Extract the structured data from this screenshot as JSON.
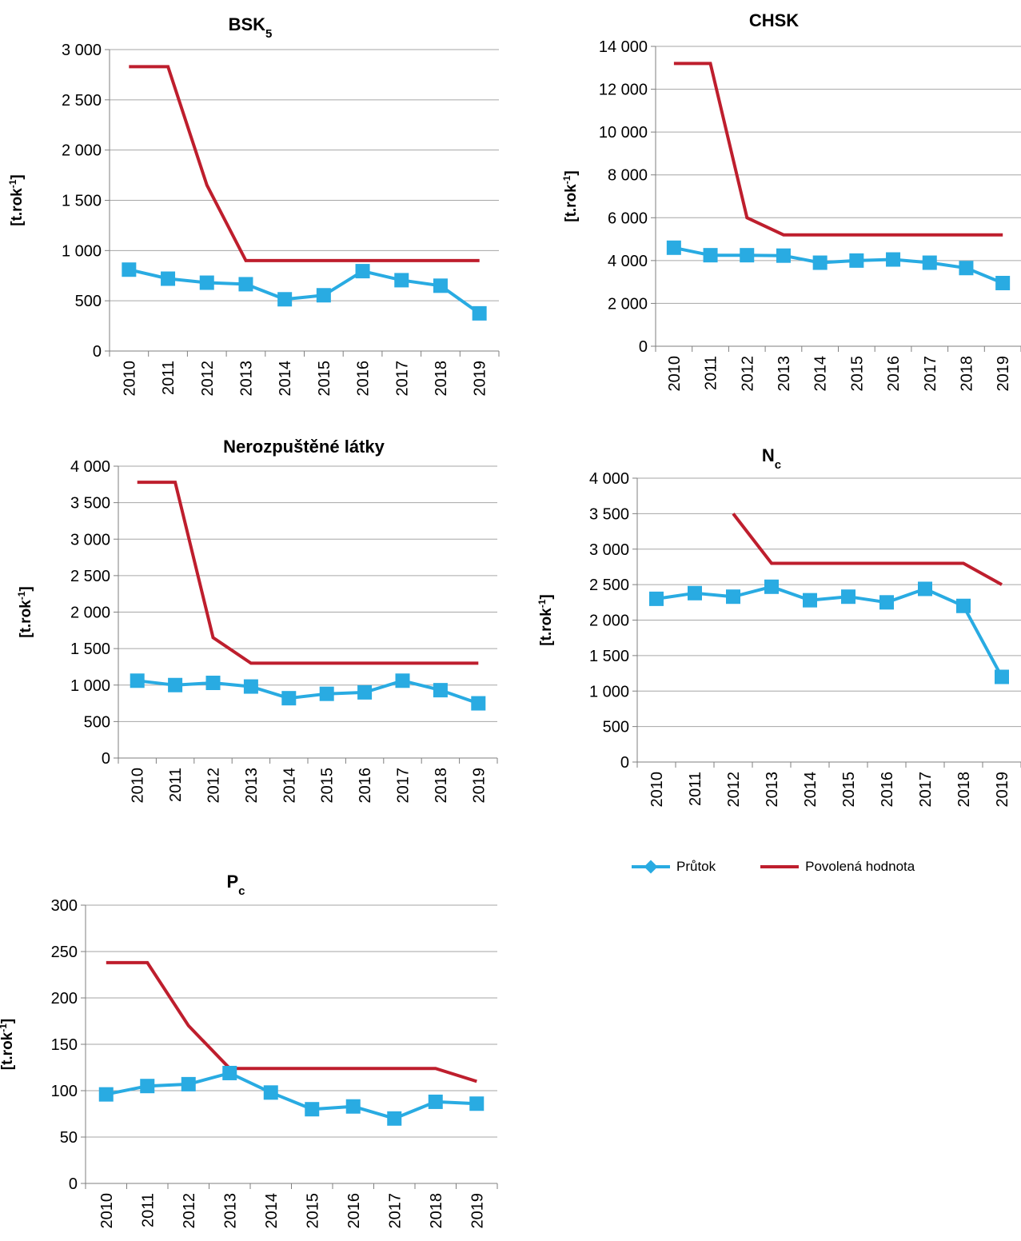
{
  "colors": {
    "flow": "#29abe2",
    "limit": "#be1e2d",
    "grid": "#a6a6a6",
    "axis": "#7f7f7f"
  },
  "unit_label": "[t.rok-1]",
  "legend": {
    "flow_label": "Průtok",
    "limit_label": "Povolená hodnota"
  },
  "chart_data": [
    {
      "type": "line",
      "title": "BSK5",
      "ylabel": "[t.rok-1]",
      "categories": [
        "2010",
        "2011",
        "2012",
        "2013",
        "2014",
        "2015",
        "2016",
        "2017",
        "2018",
        "2019"
      ],
      "ylim": [
        0,
        3000
      ],
      "yticks": [
        0,
        500,
        1000,
        1500,
        2000,
        2500,
        3000
      ],
      "ytick_labels": [
        "0",
        "500",
        "1 000",
        "1 500",
        "2 000",
        "2 500",
        "3 000"
      ],
      "grid": true,
      "series": [
        {
          "name": "Průtok",
          "values": [
            810,
            720,
            680,
            665,
            515,
            555,
            795,
            705,
            650,
            375
          ]
        },
        {
          "name": "Povolená hodnota",
          "values": [
            2830,
            2830,
            1650,
            900,
            900,
            900,
            900,
            900,
            900,
            900
          ]
        }
      ]
    },
    {
      "type": "line",
      "title": "CHSK",
      "ylabel": "[t.rok-1]",
      "categories": [
        "2010",
        "2011",
        "2012",
        "2013",
        "2014",
        "2015",
        "2016",
        "2017",
        "2018",
        "2019"
      ],
      "ylim": [
        0,
        14000
      ],
      "yticks": [
        0,
        2000,
        4000,
        6000,
        8000,
        10000,
        12000,
        14000
      ],
      "ytick_labels": [
        "0",
        "2 000",
        "4 000",
        "6 000",
        "8 000",
        "10 000",
        "12 000",
        "14 000"
      ],
      "grid": true,
      "series": [
        {
          "name": "Průtok",
          "values": [
            4600,
            4250,
            4250,
            4230,
            3900,
            4000,
            4050,
            3900,
            3650,
            2950
          ]
        },
        {
          "name": "Povolená hodnota",
          "values": [
            13200,
            13200,
            6000,
            5200,
            5200,
            5200,
            5200,
            5200,
            5200,
            5200
          ]
        }
      ]
    },
    {
      "type": "line",
      "title": "Nerozpuštěné látky",
      "ylabel": "[t.rok-1]",
      "categories": [
        "2010",
        "2011",
        "2012",
        "2013",
        "2014",
        "2015",
        "2016",
        "2017",
        "2018",
        "2019"
      ],
      "ylim": [
        0,
        4000
      ],
      "yticks": [
        0,
        500,
        1000,
        1500,
        2000,
        2500,
        3000,
        3500,
        4000
      ],
      "ytick_labels": [
        "0",
        "500",
        "1 000",
        "1 500",
        "2 000",
        "2 500",
        "3 000",
        "3 500",
        "4 000"
      ],
      "grid": true,
      "series": [
        {
          "name": "Průtok",
          "values": [
            1060,
            1000,
            1030,
            980,
            820,
            880,
            900,
            1060,
            930,
            750
          ]
        },
        {
          "name": "Povolená hodnota",
          "values": [
            3780,
            3780,
            1650,
            1300,
            1300,
            1300,
            1300,
            1300,
            1300,
            1300
          ]
        }
      ]
    },
    {
      "type": "line",
      "title": "Nc",
      "ylabel": "[t.rok-1]",
      "categories": [
        "2010",
        "2011",
        "2012",
        "2013",
        "2014",
        "2015",
        "2016",
        "2017",
        "2018",
        "2019"
      ],
      "ylim": [
        0,
        4000
      ],
      "yticks": [
        0,
        500,
        1000,
        1500,
        2000,
        2500,
        3000,
        3500,
        4000
      ],
      "ytick_labels": [
        "0",
        "500",
        "1 000",
        "1 500",
        "2 000",
        "2 500",
        "3 000",
        "3 500",
        "4 000"
      ],
      "grid": true,
      "series": [
        {
          "name": "Průtok",
          "values": [
            2300,
            2380,
            2330,
            2470,
            2280,
            2330,
            2250,
            2440,
            2200,
            1200
          ]
        },
        {
          "name": "Povolená hodnota",
          "values": [
            null,
            null,
            3500,
            2800,
            2800,
            2800,
            2800,
            2800,
            2800,
            2500
          ]
        }
      ]
    },
    {
      "type": "line",
      "title": "Pc",
      "ylabel": "[t.rok-1]",
      "categories": [
        "2010",
        "2011",
        "2012",
        "2013",
        "2014",
        "2015",
        "2016",
        "2017",
        "2018",
        "2019"
      ],
      "ylim": [
        0,
        300
      ],
      "yticks": [
        0,
        50,
        100,
        150,
        200,
        250,
        300
      ],
      "ytick_labels": [
        "0",
        "50",
        "100",
        "150",
        "200",
        "250",
        "300"
      ],
      "grid": true,
      "series": [
        {
          "name": "Průtok",
          "values": [
            96,
            105,
            107,
            119,
            98,
            80,
            83,
            70,
            88,
            86
          ]
        },
        {
          "name": "Povolená hodnota",
          "values": [
            238,
            238,
            170,
            124,
            124,
            124,
            124,
            124,
            124,
            110
          ]
        }
      ]
    }
  ]
}
